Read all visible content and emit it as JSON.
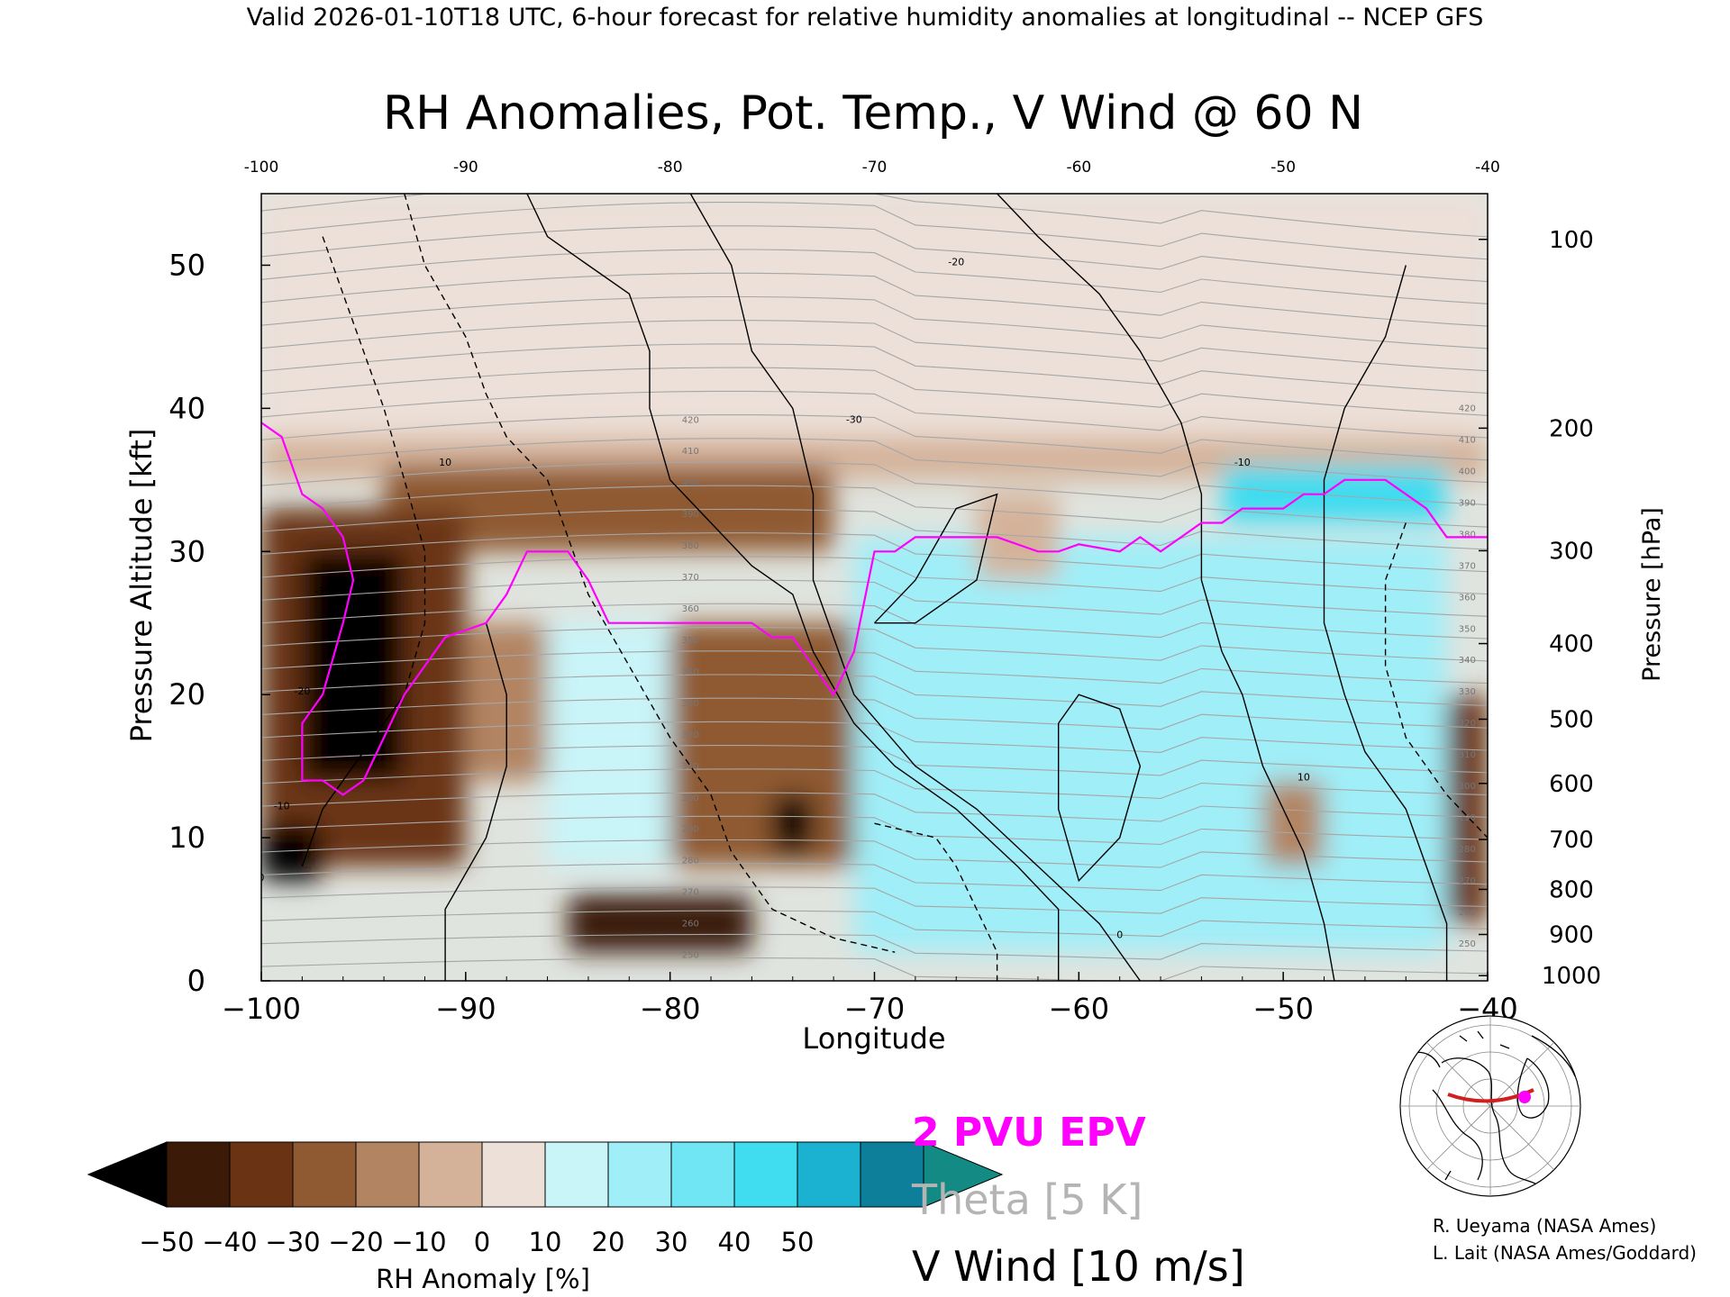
{
  "header": {
    "valid_line": "Valid 2026-01-10T18 UTC, 6-hour forecast for relative humidity anomalies at longitudinal -- NCEP GFS"
  },
  "chart_data": {
    "type": "heatmap",
    "title": "RH Anomalies, Pot. Temp., V Wind @ 60 N",
    "xlabel": "Longitude",
    "ylabel_left": "Pressure Altitude [kft]",
    "ylabel_right": "Pressure [hPa]",
    "xlim": [
      -100,
      -40
    ],
    "ylim_kft": [
      0,
      55
    ],
    "x_ticks": [
      -100,
      -90,
      -80,
      -70,
      -60,
      -50,
      -40
    ],
    "x_tick_labels": [
      "−100",
      "−90",
      "−80",
      "−70",
      "−60",
      "−50",
      "−40"
    ],
    "top_ticks": [
      -100,
      -90,
      -80,
      -70,
      -60,
      -50,
      -40
    ],
    "top_tick_labels": [
      "-100",
      "-90",
      "-80",
      "-70",
      "-60",
      "-50",
      "-40"
    ],
    "y_ticks_kft": [
      0,
      10,
      20,
      30,
      40,
      50
    ],
    "pressure_ticks": [
      {
        "hpa": 100,
        "label": "100"
      },
      {
        "hpa": 200,
        "label": "200"
      },
      {
        "hpa": 300,
        "label": "300"
      },
      {
        "hpa": 400,
        "label": "400"
      },
      {
        "hpa": 500,
        "label": "500"
      },
      {
        "hpa": 600,
        "label": "600"
      },
      {
        "hpa": 700,
        "label": "700"
      },
      {
        "hpa": 800,
        "label": "800"
      },
      {
        "hpa": 900,
        "label": "900"
      },
      {
        "hpa": 1000,
        "label": "1000"
      }
    ],
    "rh_anomaly_regions": [
      {
        "lon_min": -100,
        "lon_max": -40,
        "kft_min": 38,
        "kft_max": 55,
        "value": 2
      },
      {
        "lon_min": -100,
        "lon_max": -40,
        "kft_min": 35,
        "kft_max": 38,
        "value": -8
      },
      {
        "lon_min": -94,
        "lon_max": -72,
        "kft_min": 30,
        "kft_max": 36,
        "value": -28
      },
      {
        "lon_min": -100,
        "lon_max": -90,
        "kft_min": 8,
        "kft_max": 33,
        "value": -40
      },
      {
        "lon_min": -98,
        "lon_max": -93,
        "kft_min": 14,
        "kft_max": 30,
        "value": -55
      },
      {
        "lon_min": -100,
        "lon_max": -97,
        "kft_min": 7,
        "kft_max": 11,
        "value": -55
      },
      {
        "lon_min": -90,
        "lon_max": -86,
        "kft_min": 14,
        "kft_max": 25,
        "value": -12
      },
      {
        "lon_min": -86,
        "lon_max": -80,
        "kft_min": 8,
        "kft_max": 25,
        "value": 12
      },
      {
        "lon_min": -80,
        "lon_max": -70,
        "kft_min": 8,
        "kft_max": 25,
        "value": -30
      },
      {
        "lon_min": -75,
        "lon_max": -73,
        "kft_min": 9,
        "kft_max": 13,
        "value": -55
      },
      {
        "lon_min": -85,
        "lon_max": -76,
        "kft_min": 2,
        "kft_max": 6,
        "value": -45
      },
      {
        "lon_min": -71,
        "lon_max": -42,
        "kft_min": 2,
        "kft_max": 31,
        "value": 25
      },
      {
        "lon_min": -65,
        "lon_max": -61,
        "kft_min": 28,
        "kft_max": 34,
        "value": -10
      },
      {
        "lon_min": -53,
        "lon_max": -42,
        "kft_min": 32,
        "kft_max": 36,
        "value": 45
      },
      {
        "lon_min": -51,
        "lon_max": -48,
        "kft_min": 8,
        "kft_max": 14,
        "value": -20
      },
      {
        "lon_min": -42,
        "lon_max": -40,
        "kft_min": 4,
        "kft_max": 20,
        "value": -40
      }
    ],
    "theta_contour_labels": [
      "250",
      "260",
      "270",
      "280",
      "290",
      "300",
      "310",
      "320",
      "330",
      "340",
      "350",
      "360",
      "370",
      "380",
      "390",
      "400",
      "410",
      "420"
    ],
    "vwind_contour_labels": [
      "-30",
      "-20",
      "-10",
      "0",
      "10"
    ],
    "epv_2pvu_line": [
      [
        -100,
        39
      ],
      [
        -99,
        38
      ],
      [
        -98,
        34
      ],
      [
        -97,
        33
      ],
      [
        -96,
        31
      ],
      [
        -95.5,
        28
      ],
      [
        -96,
        25
      ],
      [
        -97,
        20
      ],
      [
        -98,
        18
      ],
      [
        -98,
        14
      ],
      [
        -97,
        14
      ],
      [
        -96,
        13
      ],
      [
        -95,
        14
      ],
      [
        -94,
        17
      ],
      [
        -93,
        20
      ],
      [
        -92,
        22
      ],
      [
        -91,
        24
      ],
      [
        -89,
        25
      ],
      [
        -88,
        27
      ],
      [
        -87,
        30
      ],
      [
        -85,
        30
      ],
      [
        -84,
        28
      ],
      [
        -83,
        25
      ],
      [
        -80,
        25
      ],
      [
        -76,
        25
      ],
      [
        -75,
        24
      ],
      [
        -74,
        24
      ],
      [
        -73,
        22
      ],
      [
        -72,
        20
      ],
      [
        -71,
        23
      ],
      [
        -70,
        30
      ],
      [
        -69,
        30
      ],
      [
        -68,
        31
      ],
      [
        -67,
        31
      ],
      [
        -66,
        31
      ],
      [
        -65,
        31
      ],
      [
        -64,
        31
      ],
      [
        -62,
        30
      ],
      [
        -61,
        30
      ],
      [
        -60,
        30.5
      ],
      [
        -58,
        30
      ],
      [
        -57,
        31
      ],
      [
        -56,
        30
      ],
      [
        -55,
        31
      ],
      [
        -54,
        32
      ],
      [
        -53,
        32
      ],
      [
        -52,
        33
      ],
      [
        -51,
        33
      ],
      [
        -50,
        33
      ],
      [
        -49,
        34
      ],
      [
        -48,
        34
      ],
      [
        -47,
        35
      ],
      [
        -46,
        35
      ],
      [
        -45,
        35
      ],
      [
        -44,
        34
      ],
      [
        -43,
        33
      ],
      [
        -42,
        31
      ],
      [
        -41,
        31
      ],
      [
        -40,
        31
      ]
    ]
  },
  "colorbar": {
    "tick_labels": [
      "−50",
      "−40",
      "−30",
      "−20",
      "−10",
      "0",
      "10",
      "20",
      "30",
      "40",
      "50"
    ],
    "label": "RH Anomaly [%]",
    "colors": [
      "#000000",
      "#3b1a08",
      "#6a3414",
      "#8f5a32",
      "#b28462",
      "#d4b29a",
      "#ece0d8",
      "#c9f4f8",
      "#a0eef8",
      "#70e6f5",
      "#40dcf0",
      "#1ab2d0",
      "#0e7f9a",
      "#138a84"
    ]
  },
  "legend": {
    "epv": "2 PVU EPV",
    "theta": "Theta [5 K]",
    "vwind": "V Wind [10 m/s]",
    "colors": {
      "epv": "#ff00ff",
      "theta": "#b4b4b4",
      "vwind": "#000000"
    }
  },
  "credits": {
    "line1": "R. Ueyama (NASA Ames)",
    "line2": "L. Lait (NASA Ames/Goddard)"
  },
  "locator_map": {
    "icon": "polar-map-icon",
    "section_color": "#d02020",
    "marker_color": "#ff00ff"
  }
}
